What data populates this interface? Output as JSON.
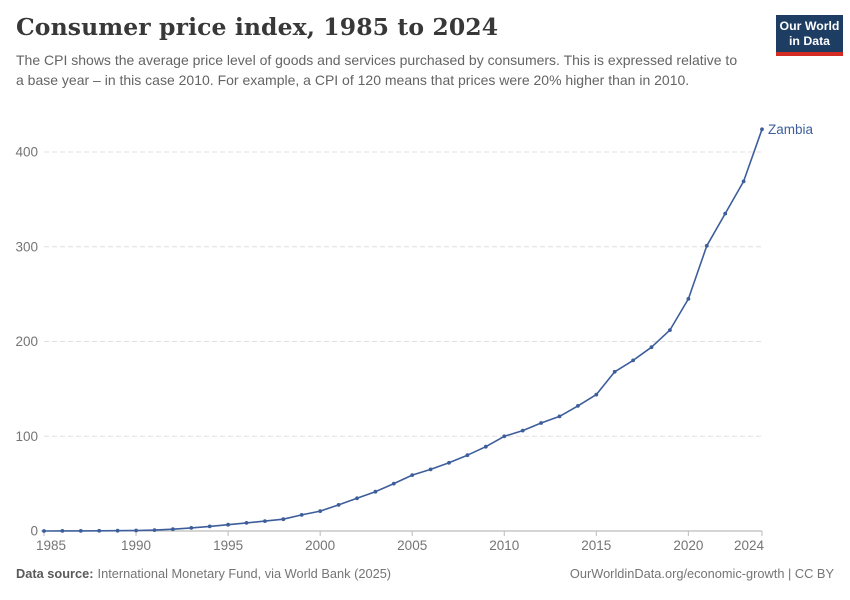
{
  "header": {
    "title": "Consumer price index, 1985 to 2024",
    "subtitle": "The CPI shows the average price level of goods and services purchased by consumers. This is expressed relative to a base year – in this case 2010. For example, a CPI of 120 means that prices were 20% higher than in 2010.",
    "logo": {
      "line1": "Our World",
      "line2": "in Data",
      "bg_color": "#1d3d63",
      "accent_color": "#d42b22"
    }
  },
  "chart_data": {
    "type": "line",
    "title": "Consumer price index, 1985 to 2024",
    "xlabel": "",
    "ylabel": "",
    "grid": "horizontal-dashed",
    "legend_position": "end-of-line-label",
    "xlim": [
      1985,
      2024
    ],
    "ylim": [
      0,
      430
    ],
    "x_ticks": [
      1985,
      1990,
      1995,
      2000,
      2005,
      2010,
      2015,
      2020,
      2024
    ],
    "y_ticks": [
      0,
      100,
      200,
      300,
      400
    ],
    "x": [
      1985,
      1986,
      1987,
      1988,
      1989,
      1990,
      1991,
      1992,
      1993,
      1994,
      1995,
      1996,
      1997,
      1998,
      1999,
      2000,
      2001,
      2002,
      2003,
      2004,
      2005,
      2006,
      2007,
      2008,
      2009,
      2010,
      2011,
      2012,
      2013,
      2014,
      2015,
      2016,
      2017,
      2018,
      2019,
      2020,
      2021,
      2022,
      2023,
      2024
    ],
    "series": [
      {
        "name": "Zambia",
        "color": "#3d5e9b",
        "values": [
          0.05,
          0.08,
          0.12,
          0.18,
          0.3,
          0.55,
          1.0,
          1.9,
          3.3,
          4.9,
          6.6,
          8.5,
          10.5,
          12.5,
          17,
          21,
          27.5,
          34.5,
          41.5,
          50,
          59,
          65,
          72,
          80,
          89,
          100,
          106,
          114,
          121,
          132,
          144,
          168,
          180,
          194,
          212,
          245,
          301,
          335,
          369,
          424
        ]
      }
    ],
    "colors": {
      "grid": "#e0e0e0",
      "axis": "#ababab",
      "tick": "#bbbbbb",
      "tick_label": "#757575"
    }
  },
  "footer": {
    "data_source_label": "Data source:",
    "data_source_text": "International Monetary Fund, via World Bank (2025)",
    "credit": "OurWorldinData.org/economic-growth | CC BY"
  }
}
